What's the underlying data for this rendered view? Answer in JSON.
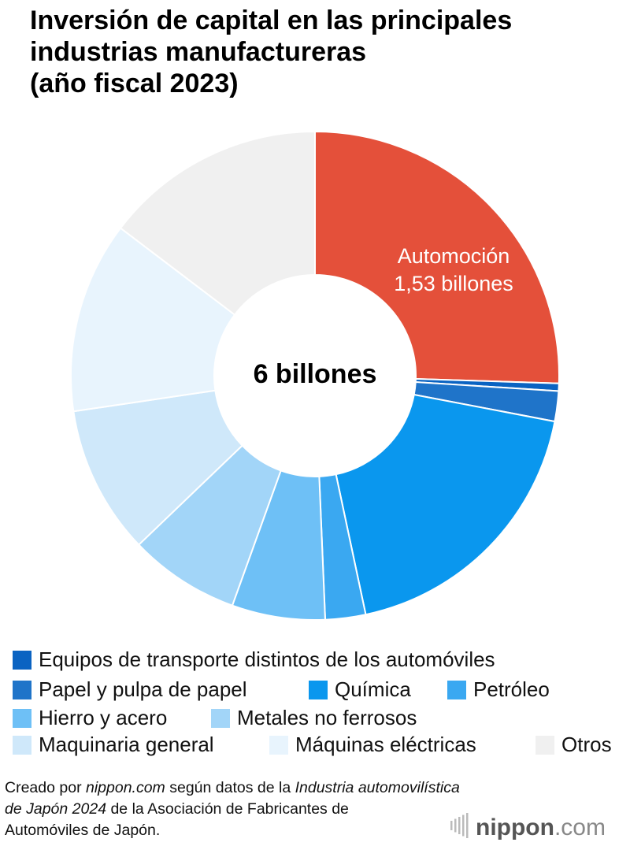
{
  "chart_data": {
    "type": "donut",
    "title": [
      "Inversión de capital en las principales",
      "industrias manufactureras",
      "(año fiscal 2023)"
    ],
    "center_label": "6 billones",
    "categories": [
      "Automoción",
      "Equipos de transporte distintos de los automóviles",
      "Papel y pulpa de papel",
      "Química",
      "Petróleo",
      "Hierro y acero",
      "Metales no ferrosos",
      "Maquinaria general",
      "Máquinas eléctricas",
      "Otros"
    ],
    "values": [
      1.53,
      0.03,
      0.12,
      1.12,
      0.16,
      0.37,
      0.44,
      0.59,
      0.76,
      0.88
    ],
    "value_labels": [
      "1,53 billones",
      null,
      null,
      null,
      null,
      null,
      null,
      null,
      null,
      null
    ],
    "colors": [
      "#e4503a",
      "#0a63c2",
      "#1f74c9",
      "#0a97ee",
      "#3aa8f1",
      "#6ec0f6",
      "#a2d5f8",
      "#cfe8fa",
      "#e8f4fd",
      "#f0f0f0"
    ],
    "source": [
      "Creado por ",
      "nippon.com",
      " según datos de la ",
      "Industria automovilística",
      "de Japón 2024",
      " de la Asociación de Fabricantes de",
      "Automóviles de Japón."
    ],
    "logo": [
      "nippon",
      ".com"
    ]
  }
}
